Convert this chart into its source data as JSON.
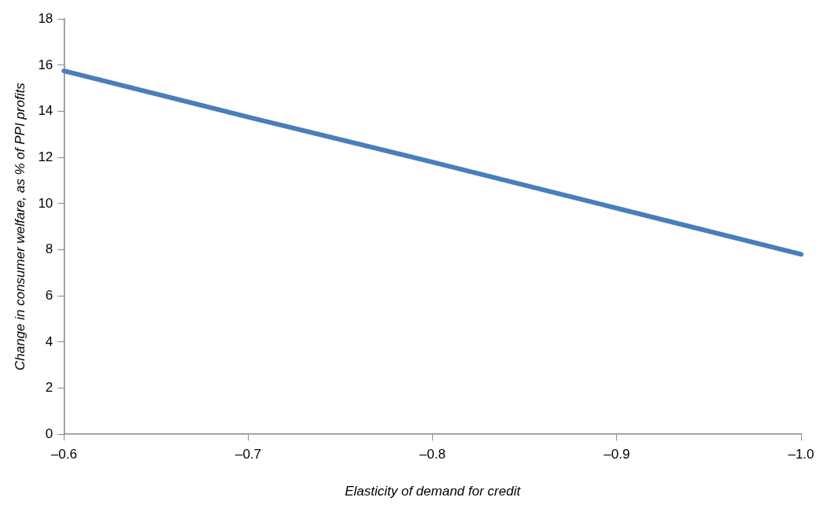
{
  "chart_data": {
    "type": "line",
    "xlabel": "Elasticity of demand for credit",
    "ylabel": "Change in consumer welfare, as % of PPI profits",
    "x": [
      -0.6,
      -0.7,
      -0.8,
      -0.9,
      -1.0
    ],
    "series": [
      {
        "color": "#4a7ebb",
        "values": [
          15.75,
          13.75,
          11.8,
          9.8,
          7.8
        ]
      }
    ],
    "xlim": [
      -0.6,
      -1.0
    ],
    "xticks": [
      {
        "value": -0.6,
        "label": "–0.6"
      },
      {
        "value": -0.7,
        "label": "–0.7"
      },
      {
        "value": -0.8,
        "label": "–0.8"
      },
      {
        "value": -0.9,
        "label": "–0.9"
      },
      {
        "value": -1.0,
        "label": "–1.0"
      }
    ],
    "ylim": [
      0,
      18
    ],
    "yticks": [
      0,
      2,
      4,
      6,
      8,
      10,
      12,
      14,
      16,
      18
    ],
    "grid": false,
    "legend": false,
    "marker": "none",
    "line_style": "solid"
  }
}
